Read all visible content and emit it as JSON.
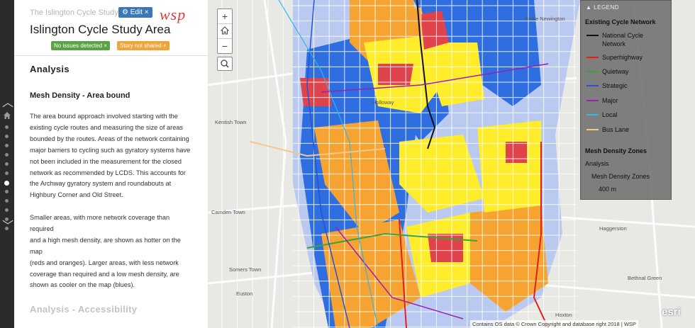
{
  "header": {
    "app_subtitle": "The Islington Cycle Study",
    "edit_label": "Edit",
    "edit_close": "×",
    "logo_text": "wsp",
    "title": "Islington Cycle Study Area",
    "badges": [
      {
        "label": "No issues detected",
        "close": "×"
      },
      {
        "label": "Story not shared",
        "close": "×"
      }
    ]
  },
  "content": {
    "section_heading": "Analysis",
    "sub_heading": "Mesh Density - Area bound",
    "paragraph1_lines": [
      "The area bound approach involved starting with the",
      "existing cycle routes and measuring the size of areas",
      "bounded by the routes. Areas of the network containing",
      "major barriers to cycling such as gyratory systems have",
      "not been included in the measurement for the closed",
      "network as recommended by LCDS. This accounts for",
      "the Archway gyratory system and roundabouts at",
      "Highbury Corner and Old Street."
    ],
    "paragraph2_lines": [
      "Smaller areas, with more network coverage than required",
      "and a high mesh density, are shown as hotter on the map",
      "(reds and oranges). Larger areas, with less network",
      "coverage than required and a low mesh density, are",
      "shown as cooler on the map (blues)."
    ],
    "next_section_heading": "Analysis - Accessibility"
  },
  "nav": {
    "dot_count": 12,
    "active_dot_index": 6
  },
  "map": {
    "zoom_in": "+",
    "zoom_out": "−",
    "attribution": "Contains OS data © Crown Copyright and database right 2018 | WSP",
    "esri_logo": "esri",
    "place_labels": [
      "Stoke Newington",
      "Camden Town",
      "Haggerston",
      "Bethnal Green",
      "Hoxton",
      "Kentish Town",
      "Holloway",
      "Euston",
      "Somers Town"
    ]
  },
  "legend": {
    "header": "LEGEND",
    "network_title": "Existing Cycle Network",
    "network_items": [
      {
        "label": "National Cycle Network",
        "color": "#111111"
      },
      {
        "label": "Superhighway",
        "color": "#e02020"
      },
      {
        "label": "Quietway",
        "color": "#3aa339"
      },
      {
        "label": "Strategic",
        "color": "#2453d8"
      },
      {
        "label": "Major",
        "color": "#9b1fb5"
      },
      {
        "label": "Local",
        "color": "#2fb7e8"
      },
      {
        "label": "Bus Lane",
        "color": "#f2c98a"
      }
    ],
    "mesh_title": "Mesh Density Zones",
    "mesh_sub1": "Analysis",
    "mesh_sub2": "Mesh Density Zones",
    "mesh_sub3": "400 m"
  },
  "colors": {
    "zone_red": "#e0434b",
    "zone_orange": "#f7a331",
    "zone_yellow": "#ffec2a",
    "zone_blue": "#2f6ee0",
    "zone_lightblue": "#b9c9ef"
  }
}
